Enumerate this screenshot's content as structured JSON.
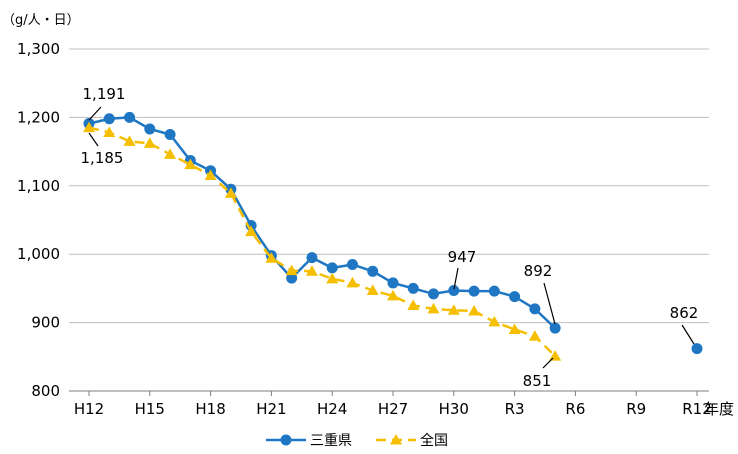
{
  "chart_data": {
    "type": "line",
    "unit_label": "（g/人・日）",
    "x_unit_label": "年度",
    "ylim": [
      800,
      1300
    ],
    "yticks": [
      "800",
      "900",
      "1,000",
      "1,100",
      "1,200",
      "1,300"
    ],
    "ytick_values": [
      800,
      900,
      1000,
      1100,
      1200,
      1300
    ],
    "x_categories": [
      "H12",
      "H13",
      "H14",
      "H15",
      "H16",
      "H17",
      "H18",
      "H19",
      "H20",
      "H21",
      "H22",
      "H23",
      "H24",
      "H25",
      "H26",
      "H27",
      "H28",
      "H29",
      "H30",
      "R1",
      "R2",
      "R3",
      "R4",
      "R5",
      "R6",
      "R7",
      "R8",
      "R9",
      "R10",
      "R11",
      "R12"
    ],
    "xtick_labels": [
      "H12",
      "H15",
      "H18",
      "H21",
      "H24",
      "H27",
      "H30",
      "R3",
      "R6",
      "R9",
      "R12"
    ],
    "grid": true,
    "legend_position": "bottom",
    "series": [
      {
        "name": "三重県",
        "color": "#1f77c4",
        "marker": "circle",
        "line_style": "solid",
        "values": [
          1191,
          1198,
          1200,
          1183,
          1175,
          1137,
          1122,
          1095,
          1042,
          998,
          965,
          995,
          980,
          985,
          975,
          958,
          950,
          942,
          947,
          946,
          946,
          938,
          920,
          892,
          null,
          null,
          null,
          null,
          null,
          null,
          862
        ],
        "connected_until_index": 23
      },
      {
        "name": "全国",
        "color": "#f5bf00",
        "marker": "triangle",
        "line_style": "dashed",
        "values": [
          1185,
          1178,
          1165,
          1162,
          1146,
          1131,
          1115,
          1089,
          1033,
          994,
          976,
          975,
          964,
          958,
          947,
          939,
          925,
          920,
          918,
          917,
          901,
          890,
          880,
          851
        ]
      }
    ],
    "annotations": [
      {
        "text": "1,191",
        "series": "三重県",
        "index": 0
      },
      {
        "text": "1,185",
        "series": "全国",
        "index": 0
      },
      {
        "text": "947",
        "series": "三重県",
        "index": 18
      },
      {
        "text": "892",
        "series": "三重県",
        "index": 23
      },
      {
        "text": "851",
        "series": "全国",
        "index": 23
      },
      {
        "text": "862",
        "series": "三重県",
        "index": 30
      }
    ]
  }
}
